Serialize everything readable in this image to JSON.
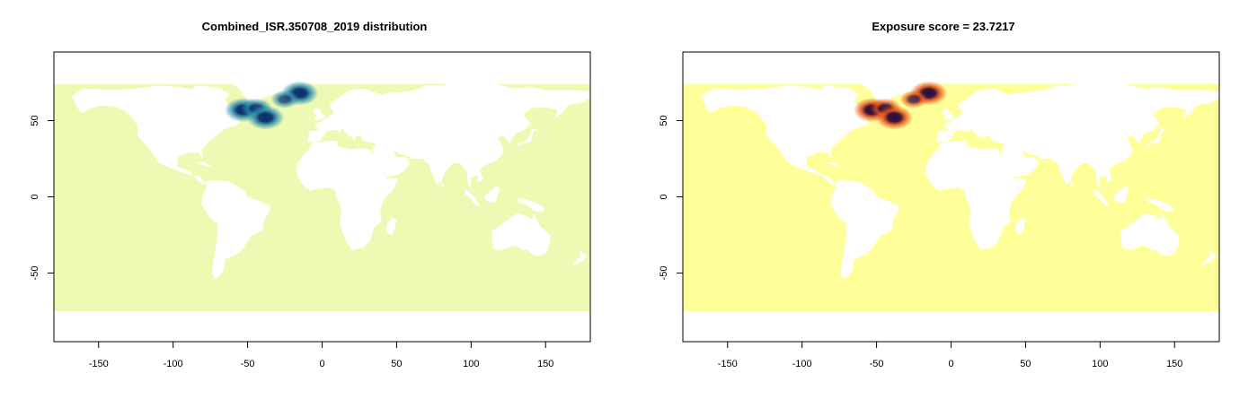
{
  "chart_data": [
    {
      "type": "heatmap",
      "title": "Combined_ISR.350708_2019 distribution",
      "xlabel": "",
      "ylabel": "",
      "xlim": [
        -180,
        180
      ],
      "ylim": [
        -95,
        95
      ],
      "x_ticks": [
        -150,
        -100,
        -50,
        0,
        50,
        100,
        150
      ],
      "y_ticks": [
        -50,
        0,
        50
      ],
      "ocean_extent_lat": [
        -75,
        74
      ],
      "colors": {
        "ocean": "#eefab4",
        "hotspot_mid": "#2f8fb0",
        "hotspot_high": "#08306b"
      },
      "hotspots": [
        {
          "lon": -53,
          "lat": 57,
          "intensity": 1.0
        },
        {
          "lon": -44,
          "lat": 58,
          "intensity": 0.75
        },
        {
          "lon": -38,
          "lat": 52,
          "intensity": 1.0
        },
        {
          "lon": -15,
          "lat": 68,
          "intensity": 1.0
        },
        {
          "lon": -25,
          "lat": 64,
          "intensity": 0.6
        }
      ]
    },
    {
      "type": "heatmap",
      "title": "Exposure score = 23.7217",
      "xlabel": "",
      "ylabel": "",
      "xlim": [
        -180,
        180
      ],
      "ylim": [
        -95,
        95
      ],
      "x_ticks": [
        -150,
        -100,
        -50,
        0,
        50,
        100,
        150
      ],
      "y_ticks": [
        -50,
        0,
        50
      ],
      "ocean_extent_lat": [
        -75,
        74
      ],
      "colors": {
        "ocean": "#ffff99",
        "hotspot_mid": "#e8541a",
        "hotspot_high": "#2d0a3a"
      },
      "hotspots": [
        {
          "lon": -53,
          "lat": 57,
          "intensity": 1.0
        },
        {
          "lon": -44,
          "lat": 58,
          "intensity": 0.75
        },
        {
          "lon": -38,
          "lat": 52,
          "intensity": 1.0
        },
        {
          "lon": -15,
          "lat": 68,
          "intensity": 1.0
        },
        {
          "lon": -25,
          "lat": 64,
          "intensity": 0.6
        }
      ]
    }
  ]
}
